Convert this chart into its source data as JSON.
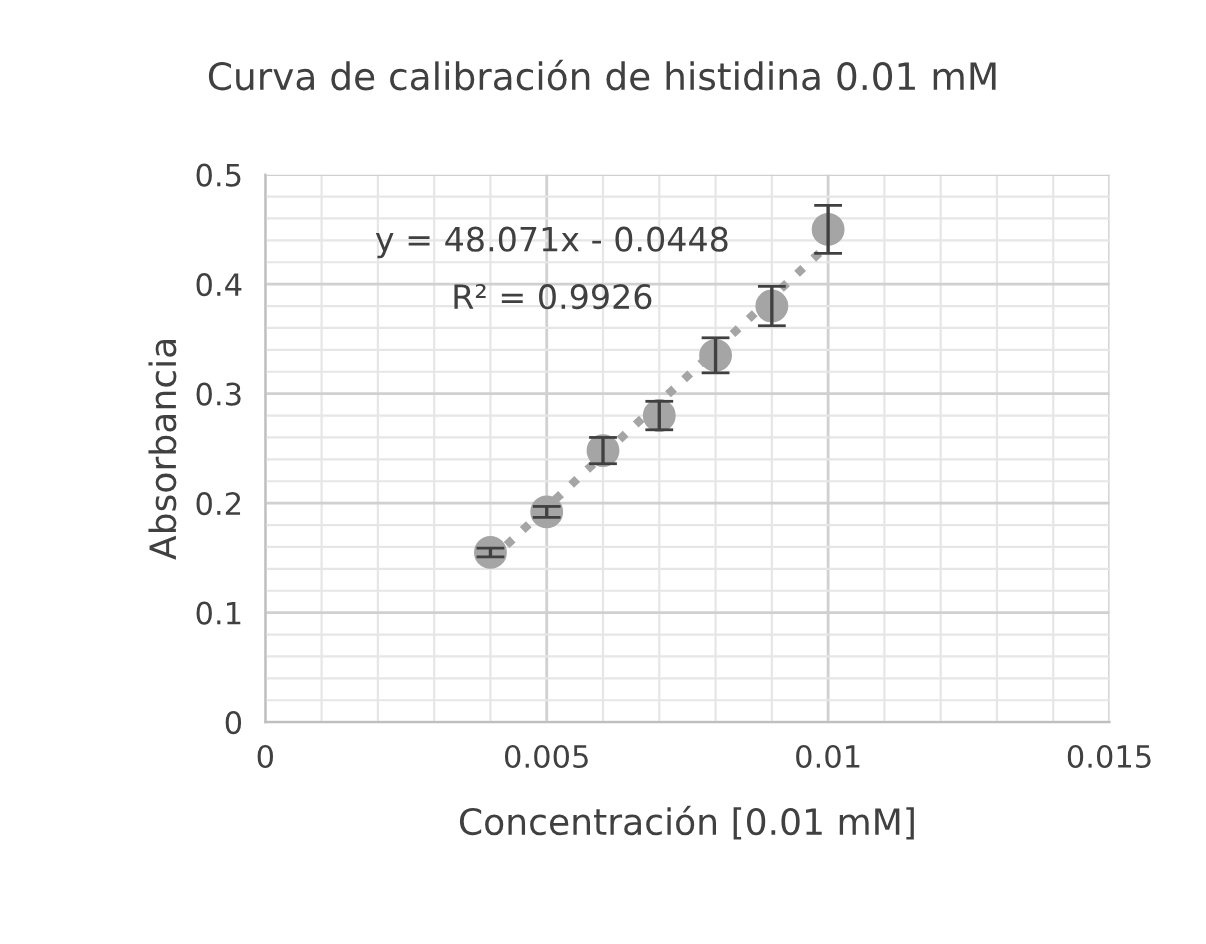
{
  "chart_data": {
    "type": "scatter",
    "title": "Curva de calibración de histidina 0.01 mM",
    "xlabel": "Concentración [0.01 mM]",
    "ylabel": "Absorbancia",
    "x": [
      0.004,
      0.005,
      0.006,
      0.007,
      0.008,
      0.009,
      0.01
    ],
    "series": [
      {
        "color": "#a5a5a5",
        "values": [
          0.155,
          0.192,
          0.248,
          0.28,
          0.335,
          0.38,
          0.45
        ],
        "errors": [
          0.004,
          0.005,
          0.012,
          0.013,
          0.016,
          0.018,
          0.022
        ],
        "marker": "circle"
      },
      {
        "type": "line",
        "color": "#a5a5a5",
        "x": [
          0.004,
          0.01
        ],
        "values": [
          0.148,
          0.436
        ],
        "line_style": "dotted",
        "marker": "none"
      }
    ],
    "annotations": [
      "y = 48.071x - 0.0448",
      "R² = 0.9926"
    ],
    "xlim": [
      0,
      0.015
    ],
    "xticks": [
      0,
      0.005,
      0.01,
      0.015
    ],
    "ylim": [
      0,
      0.5
    ],
    "yticks": [
      0,
      0.1,
      0.2,
      0.3,
      0.4,
      0.5
    ],
    "grid": true,
    "legend": false
  }
}
